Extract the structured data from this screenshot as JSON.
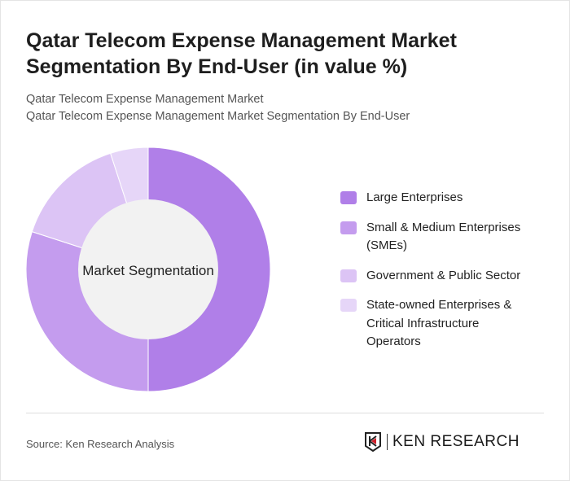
{
  "header": {
    "title": "Qatar Telecom Expense Management Market Segmentation By End-User (in value %)",
    "subtitle1": "Qatar Telecom Expense Management Market",
    "subtitle2": "Qatar Telecom Expense Management Market Segmentation By End-User"
  },
  "chart_data": {
    "type": "pie",
    "variant": "donut",
    "center_label": "Market Segmentation",
    "categories": [
      "Large Enterprises",
      "Small & Medium Enterprises (SMEs)",
      "Government & Public Sector",
      "State-owned Enterprises & Critical Infrastructure Operators"
    ],
    "values": [
      50,
      30,
      15,
      5
    ],
    "colors": [
      "#b07fe8",
      "#c49cee",
      "#dcc4f5",
      "#e6d6f8"
    ],
    "legend_position": "right"
  },
  "footer": {
    "source": "Source: Ken Research Analysis",
    "logo_text": "KEN RESEARCH"
  }
}
